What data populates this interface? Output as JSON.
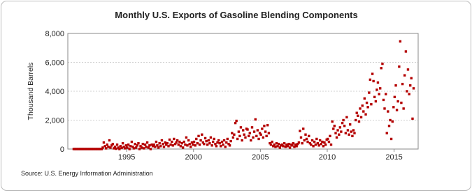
{
  "chart_data": {
    "type": "scatter",
    "title": "Monthly U.S. Exports of Gasoline Blending Components",
    "y_label": "Thousand Barrels",
    "source": "Source: U.S. Energy Information Administration",
    "color": "#b40000",
    "grid": true,
    "xlim": [
      1990.6,
      2016.8
    ],
    "xticks": [
      1995,
      2000,
      2005,
      2010,
      2015
    ],
    "ylim": [
      0,
      8000
    ],
    "yticks": [
      0,
      {
        "value": 2000,
        "label": "2,000"
      },
      {
        "value": 4000,
        "label": "4,000"
      },
      {
        "value": 6000,
        "label": "6,000"
      },
      {
        "value": 8000,
        "label": "8,000"
      }
    ],
    "x": [
      1991.04,
      1991.13,
      1991.21,
      1991.29,
      1991.38,
      1991.46,
      1991.54,
      1991.63,
      1991.71,
      1991.79,
      1991.88,
      1991.96,
      1992.04,
      1992.13,
      1992.21,
      1992.29,
      1992.38,
      1992.46,
      1992.54,
      1992.63,
      1992.71,
      1992.79,
      1992.88,
      1992.96,
      1993.04,
      1993.13,
      1993.21,
      1993.29,
      1993.38,
      1993.46,
      1993.54,
      1993.63,
      1993.71,
      1993.79,
      1993.88,
      1993.96,
      1994.04,
      1994.13,
      1994.21,
      1994.29,
      1994.38,
      1994.46,
      1994.54,
      1994.63,
      1994.71,
      1994.79,
      1994.88,
      1994.96,
      1995.04,
      1995.13,
      1995.21,
      1995.29,
      1995.38,
      1995.46,
      1995.54,
      1995.63,
      1995.71,
      1995.79,
      1995.88,
      1995.96,
      1996.04,
      1996.13,
      1996.21,
      1996.29,
      1996.38,
      1996.46,
      1996.54,
      1996.63,
      1996.71,
      1996.79,
      1996.88,
      1996.96,
      1997.04,
      1997.13,
      1997.21,
      1997.29,
      1997.38,
      1997.46,
      1997.54,
      1997.63,
      1997.71,
      1997.79,
      1997.88,
      1997.96,
      1998.04,
      1998.13,
      1998.21,
      1998.29,
      1998.38,
      1998.46,
      1998.54,
      1998.63,
      1998.71,
      1998.79,
      1998.88,
      1998.96,
      1999.04,
      1999.13,
      1999.21,
      1999.29,
      1999.38,
      1999.46,
      1999.54,
      1999.63,
      1999.71,
      1999.79,
      1999.88,
      1999.96,
      2000.04,
      2000.13,
      2000.21,
      2000.29,
      2000.38,
      2000.46,
      2000.54,
      2000.63,
      2000.71,
      2000.79,
      2000.88,
      2000.96,
      2001.04,
      2001.13,
      2001.21,
      2001.29,
      2001.38,
      2001.46,
      2001.54,
      2001.63,
      2001.71,
      2001.79,
      2001.88,
      2001.96,
      2002.04,
      2002.13,
      2002.21,
      2002.29,
      2002.38,
      2002.46,
      2002.54,
      2002.63,
      2002.71,
      2002.79,
      2002.88,
      2002.96,
      2003.04,
      2003.13,
      2003.21,
      2003.29,
      2003.38,
      2003.46,
      2003.54,
      2003.63,
      2003.71,
      2003.79,
      2003.88,
      2003.96,
      2004.04,
      2004.13,
      2004.21,
      2004.29,
      2004.38,
      2004.46,
      2004.54,
      2004.63,
      2004.71,
      2004.79,
      2004.88,
      2004.96,
      2005.04,
      2005.13,
      2005.21,
      2005.29,
      2005.38,
      2005.46,
      2005.54,
      2005.63,
      2005.71,
      2005.79,
      2005.88,
      2005.96,
      2006.04,
      2006.13,
      2006.21,
      2006.29,
      2006.38,
      2006.46,
      2006.54,
      2006.63,
      2006.71,
      2006.79,
      2006.88,
      2006.96,
      2007.04,
      2007.13,
      2007.21,
      2007.29,
      2007.38,
      2007.46,
      2007.54,
      2007.63,
      2007.71,
      2007.79,
      2007.88,
      2007.96,
      2008.04,
      2008.13,
      2008.21,
      2008.29,
      2008.38,
      2008.46,
      2008.54,
      2008.63,
      2008.71,
      2008.79,
      2008.88,
      2008.96,
      2009.04,
      2009.13,
      2009.21,
      2009.29,
      2009.38,
      2009.46,
      2009.54,
      2009.63,
      2009.71,
      2009.79,
      2009.88,
      2009.96,
      2010.04,
      2010.13,
      2010.21,
      2010.29,
      2010.38,
      2010.46,
      2010.54,
      2010.63,
      2010.71,
      2010.79,
      2010.88,
      2010.96,
      2011.04,
      2011.13,
      2011.21,
      2011.29,
      2011.38,
      2011.46,
      2011.54,
      2011.63,
      2011.71,
      2011.79,
      2011.88,
      2011.96,
      2012.04,
      2012.13,
      2012.21,
      2012.29,
      2012.38,
      2012.46,
      2012.54,
      2012.63,
      2012.71,
      2012.79,
      2012.88,
      2012.96,
      2013.04,
      2013.13,
      2013.21,
      2013.29,
      2013.38,
      2013.46,
      2013.54,
      2013.63,
      2013.71,
      2013.79,
      2013.88,
      2013.96,
      2014.04,
      2014.13,
      2014.21,
      2014.29,
      2014.38,
      2014.46,
      2014.54,
      2014.63,
      2014.71,
      2014.79,
      2014.88,
      2014.96,
      2015.04,
      2015.13,
      2015.21,
      2015.29,
      2015.38,
      2015.46,
      2015.54,
      2015.63,
      2015.71,
      2015.79,
      2015.88,
      2015.96,
      2016.04,
      2016.13,
      2016.21,
      2016.29,
      2016.38,
      2016.46
    ],
    "values": [
      0,
      0,
      0,
      0,
      0,
      0,
      0,
      0,
      0,
      0,
      0,
      0,
      0,
      0,
      0,
      0,
      0,
      0,
      0,
      0,
      0,
      0,
      0,
      0,
      0,
      0,
      100,
      450,
      200,
      50,
      300,
      150,
      600,
      100,
      250,
      350,
      50,
      150,
      20,
      300,
      100,
      0,
      200,
      80,
      400,
      150,
      50,
      250,
      100,
      300,
      0,
      200,
      500,
      150,
      50,
      350,
      100,
      250,
      400,
      0,
      200,
      100,
      350,
      50,
      300,
      150,
      450,
      100,
      250,
      0,
      300,
      200,
      300,
      150,
      500,
      250,
      100,
      400,
      200,
      600,
      350,
      150,
      450,
      300,
      400,
      200,
      650,
      300,
      500,
      250,
      700,
      350,
      450,
      600,
      300,
      500,
      200,
      400,
      100,
      500,
      300,
      800,
      250,
      600,
      350,
      150,
      450,
      300,
      500,
      250,
      700,
      400,
      900,
      300,
      600,
      1000,
      450,
      350,
      750,
      550,
      300,
      600,
      400,
      800,
      250,
      500,
      700,
      350,
      200,
      450,
      600,
      400,
      200,
      500,
      300,
      600,
      150,
      450,
      700,
      350,
      250,
      550,
      1100,
      800,
      1000,
      1800,
      1950,
      700,
      1200,
      900,
      1500,
      600,
      1300,
      1000,
      800,
      1400,
      1350,
      900,
      1100,
      600,
      1500,
      800,
      1200,
      2050,
      900,
      1300,
      700,
      1100,
      1000,
      1400,
      800,
      1600,
      1200,
      900,
      1650,
      1100,
      400,
      300,
      500,
      200,
      300,
      150,
      400,
      200,
      350,
      100,
      250,
      300,
      200,
      400,
      150,
      300,
      200,
      350,
      100,
      300,
      250,
      400,
      150,
      300,
      200,
      350,
      450,
      1250,
      800,
      400,
      1400,
      600,
      1000,
      700,
      500,
      900,
      400,
      300,
      600,
      200,
      500,
      300,
      700,
      400,
      250,
      600,
      350,
      500,
      200,
      450,
      300,
      650,
      700,
      500,
      900,
      300,
      1900,
      1400,
      1600,
      1100,
      800,
      1300,
      1000,
      1500,
      1200,
      1800,
      2000,
      1600,
      1100,
      2200,
      1300,
      1000,
      1700,
      1200,
      900,
      1300,
      1100,
      2000,
      2500,
      2300,
      1900,
      2800,
      2200,
      3000,
      2600,
      3500,
      2400,
      3200,
      2900,
      3900,
      4800,
      3100,
      5200,
      4700,
      3600,
      3300,
      4100,
      4600,
      3800,
      4200,
      5600,
      5900,
      3400,
      2800,
      3800,
      1100,
      2600,
      1600,
      2000,
      700,
      1900,
      2900,
      3600,
      4400,
      2700,
      3300,
      5700,
      7450,
      3200,
      4500,
      2800,
      5100,
      6750,
      4000,
      5500,
      3800,
      4400,
      4900,
      2100,
      4200
    ]
  }
}
